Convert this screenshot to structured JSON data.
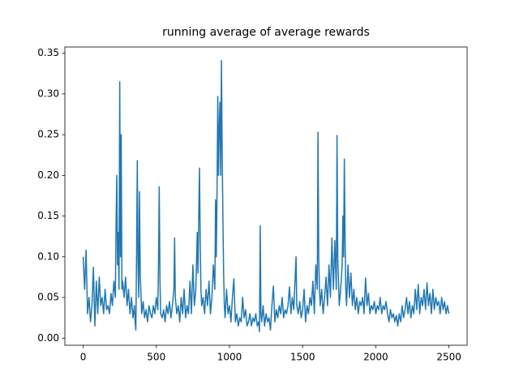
{
  "chart_data": {
    "type": "line",
    "title": "running average of average rewards",
    "x": [
      0,
      10,
      20,
      30,
      40,
      50,
      60,
      70,
      80,
      90,
      100,
      110,
      120,
      130,
      140,
      150,
      160,
      170,
      180,
      190,
      200,
      210,
      220,
      225,
      230,
      235,
      240,
      245,
      250,
      255,
      260,
      265,
      270,
      280,
      290,
      300,
      310,
      320,
      330,
      340,
      350,
      355,
      360,
      365,
      370,
      375,
      380,
      385,
      390,
      400,
      410,
      420,
      430,
      440,
      450,
      460,
      470,
      480,
      490,
      500,
      510,
      515,
      520,
      525,
      530,
      540,
      550,
      560,
      570,
      580,
      590,
      600,
      610,
      620,
      625,
      630,
      640,
      650,
      660,
      670,
      680,
      690,
      700,
      710,
      720,
      730,
      740,
      750,
      760,
      770,
      780,
      785,
      790,
      795,
      800,
      805,
      810,
      820,
      830,
      840,
      850,
      860,
      870,
      880,
      890,
      900,
      905,
      910,
      915,
      920,
      925,
      930,
      935,
      940,
      945,
      950,
      955,
      960,
      965,
      970,
      980,
      990,
      1000,
      1010,
      1020,
      1030,
      1040,
      1050,
      1060,
      1070,
      1080,
      1090,
      1100,
      1110,
      1120,
      1130,
      1140,
      1150,
      1160,
      1170,
      1180,
      1190,
      1200,
      1205,
      1210,
      1215,
      1220,
      1230,
      1240,
      1250,
      1260,
      1270,
      1280,
      1290,
      1300,
      1310,
      1320,
      1330,
      1340,
      1350,
      1360,
      1370,
      1380,
      1390,
      1400,
      1410,
      1420,
      1430,
      1440,
      1450,
      1455,
      1460,
      1470,
      1480,
      1490,
      1500,
      1510,
      1520,
      1530,
      1540,
      1550,
      1560,
      1570,
      1580,
      1590,
      1600,
      1605,
      1610,
      1615,
      1620,
      1630,
      1640,
      1650,
      1660,
      1670,
      1680,
      1690,
      1700,
      1710,
      1720,
      1730,
      1735,
      1740,
      1745,
      1750,
      1760,
      1770,
      1775,
      1780,
      1785,
      1790,
      1795,
      1800,
      1810,
      1820,
      1830,
      1840,
      1850,
      1860,
      1870,
      1880,
      1890,
      1900,
      1910,
      1920,
      1930,
      1940,
      1950,
      1960,
      1970,
      1980,
      1990,
      2000,
      2010,
      2020,
      2030,
      2040,
      2050,
      2060,
      2070,
      2080,
      2090,
      2100,
      2110,
      2120,
      2130,
      2140,
      2150,
      2160,
      2170,
      2180,
      2190,
      2200,
      2210,
      2220,
      2230,
      2240,
      2250,
      2260,
      2270,
      2280,
      2290,
      2300,
      2310,
      2320,
      2330,
      2340,
      2350,
      2360,
      2370,
      2380,
      2390,
      2400,
      2410,
      2420,
      2430,
      2440,
      2450,
      2460,
      2470,
      2480,
      2490,
      2499
    ],
    "series": [
      {
        "color": "#1f77b4",
        "values": [
          0.1,
          0.06,
          0.108,
          0.03,
          0.05,
          0.02,
          0.04,
          0.087,
          0.015,
          0.07,
          0.03,
          0.075,
          0.04,
          0.05,
          0.03,
          0.06,
          0.035,
          0.04,
          0.03,
          0.055,
          0.04,
          0.07,
          0.05,
          0.14,
          0.2,
          0.09,
          0.13,
          0.06,
          0.315,
          0.1,
          0.25,
          0.06,
          0.07,
          0.05,
          0.075,
          0.04,
          0.06,
          0.03,
          0.05,
          0.025,
          0.04,
          0.02,
          0.01,
          0.1,
          0.218,
          0.09,
          0.05,
          0.18,
          0.08,
          0.03,
          0.045,
          0.025,
          0.035,
          0.02,
          0.04,
          0.03,
          0.025,
          0.04,
          0.03,
          0.05,
          0.035,
          0.09,
          0.186,
          0.07,
          0.03,
          0.025,
          0.035,
          0.02,
          0.04,
          0.03,
          0.045,
          0.025,
          0.04,
          0.06,
          0.123,
          0.05,
          0.03,
          0.04,
          0.02,
          0.05,
          0.03,
          0.06,
          0.025,
          0.04,
          0.03,
          0.07,
          0.03,
          0.09,
          0.04,
          0.06,
          0.13,
          0.08,
          0.15,
          0.209,
          0.12,
          0.06,
          0.04,
          0.05,
          0.03,
          0.06,
          0.04,
          0.07,
          0.03,
          0.05,
          0.09,
          0.06,
          0.17,
          0.1,
          0.18,
          0.297,
          0.2,
          0.26,
          0.29,
          0.2,
          0.341,
          0.23,
          0.15,
          0.08,
          0.04,
          0.025,
          0.06,
          0.03,
          0.04,
          0.02,
          0.05,
          0.073,
          0.02,
          0.03,
          0.015,
          0.025,
          0.02,
          0.05,
          0.025,
          0.035,
          0.015,
          0.02,
          0.03,
          0.015,
          0.025,
          0.02,
          0.03,
          0.015,
          0.02,
          0.008,
          0.138,
          0.03,
          0.02,
          0.04,
          0.015,
          0.03,
          0.02,
          0.025,
          0.01,
          0.04,
          0.064,
          0.02,
          0.035,
          0.025,
          0.04,
          0.03,
          0.05,
          0.025,
          0.035,
          0.03,
          0.04,
          0.063,
          0.03,
          0.05,
          0.035,
          0.08,
          0.1,
          0.04,
          0.03,
          0.045,
          0.025,
          0.035,
          0.06,
          0.02,
          0.04,
          0.03,
          0.05,
          0.04,
          0.07,
          0.03,
          0.09,
          0.06,
          0.253,
          0.1,
          0.06,
          0.04,
          0.06,
          0.03,
          0.05,
          0.075,
          0.04,
          0.09,
          0.05,
          0.123,
          0.06,
          0.12,
          0.06,
          0.249,
          0.1,
          0.07,
          0.04,
          0.06,
          0.09,
          0.15,
          0.1,
          0.22,
          0.12,
          0.06,
          0.04,
          0.09,
          0.05,
          0.08,
          0.04,
          0.06,
          0.035,
          0.05,
          0.03,
          0.045,
          0.04,
          0.05,
          0.03,
          0.074,
          0.04,
          0.055,
          0.03,
          0.04,
          0.035,
          0.045,
          0.03,
          0.04,
          0.035,
          0.05,
          0.03,
          0.04,
          0.035,
          0.045,
          0.03,
          0.02,
          0.035,
          0.025,
          0.03,
          0.02,
          0.028,
          0.015,
          0.03,
          0.02,
          0.04,
          0.025,
          0.035,
          0.05,
          0.03,
          0.045,
          0.025,
          0.04,
          0.03,
          0.06,
          0.035,
          0.066,
          0.03,
          0.05,
          0.04,
          0.06,
          0.035,
          0.068,
          0.04,
          0.055,
          0.03,
          0.06,
          0.035,
          0.05,
          0.04,
          0.045,
          0.03,
          0.05,
          0.035,
          0.045,
          0.03,
          0.04,
          0.03
        ]
      }
    ],
    "xlim": [
      -124.95,
      2623.95
    ],
    "xticks": [
      0,
      500,
      1000,
      1500,
      2000,
      2500
    ],
    "ylim": [
      -0.0087,
      0.3577
    ],
    "yticks": [
      {
        "value": 0,
        "label": "0.00"
      },
      0.05,
      {
        "value": 0.1,
        "label": "0.10"
      },
      0.15,
      {
        "value": 0.2,
        "label": "0.20"
      },
      0.25,
      {
        "value": 0.3,
        "label": "0.30"
      },
      0.35
    ]
  }
}
